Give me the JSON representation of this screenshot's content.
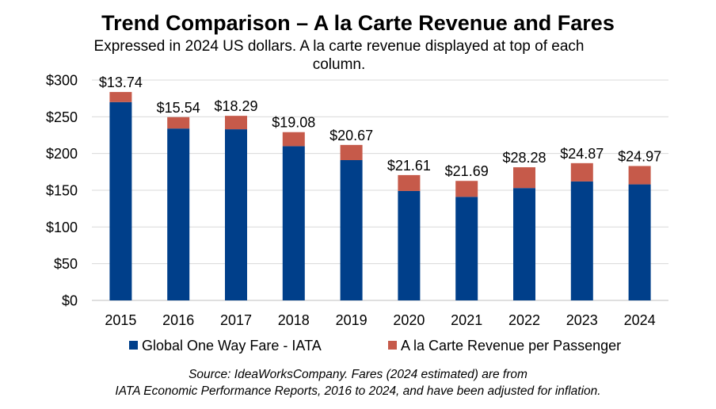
{
  "chart_data": {
    "type": "bar",
    "stacked": true,
    "title": "Trend Comparison – A la Carte Revenue and Fares",
    "subtitle_line1": "Expressed in 2024 US dollars.  A la carte revenue displayed at top of each",
    "subtitle_line2": "column.",
    "categories": [
      "2015",
      "2016",
      "2017",
      "2018",
      "2019",
      "2020",
      "2021",
      "2022",
      "2023",
      "2024"
    ],
    "series": [
      {
        "name": "Global One Way Fare - IATA",
        "color": "#003F8A",
        "values": [
          270,
          234,
          233,
          210,
          191,
          149,
          141,
          153,
          162,
          158
        ]
      },
      {
        "name": "A la Carte Revenue per Passenger",
        "color": "#C65A4A",
        "values": [
          13.74,
          15.54,
          18.29,
          19.08,
          20.67,
          21.61,
          21.69,
          28.28,
          24.87,
          24.97
        ]
      }
    ],
    "data_labels": [
      "$13.74",
      "$15.54",
      "$18.29",
      "$19.08",
      "$20.67",
      "$21.61",
      "$21.69",
      "$28.28",
      "$24.87",
      "$24.97"
    ],
    "y_ticks": [
      0,
      50,
      100,
      150,
      200,
      250,
      300
    ],
    "y_tick_labels": [
      "$0",
      "$50",
      "$100",
      "$150",
      "$200",
      "$250",
      "$300"
    ],
    "ylim": [
      0,
      300
    ],
    "grid": true,
    "legend_position": "bottom",
    "gridline_color": "#D9D9D9"
  },
  "source": {
    "line1": "Source:  IdeaWorksCompany.  Fares (2024 estimated) are from",
    "line2": "IATA Economic Performance Reports, 2016 to 2024, and have been adjusted for inflation."
  }
}
